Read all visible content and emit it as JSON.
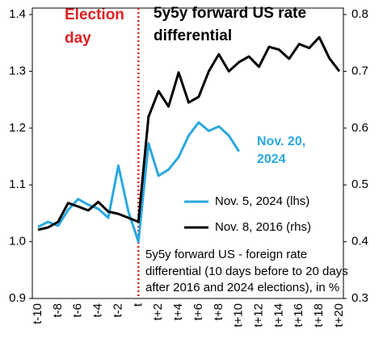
{
  "chart_data": {
    "type": "line",
    "annotations": {
      "event": [
        "Election",
        "day"
      ],
      "title": [
        "5y5y forward US rate",
        "differential"
      ],
      "latest": [
        "Nov. 20,",
        "2024"
      ],
      "note": [
        "5y5y forward US - foreign rate",
        "differential (10 days before to 20 days",
        "after 2016 and 2024 elections), in %"
      ]
    },
    "categories": [
      "t-10",
      null,
      "t-8",
      null,
      "t-6",
      null,
      "t-4",
      null,
      "t-2",
      null,
      "t",
      null,
      "t+2",
      null,
      "t+4",
      null,
      "t+6",
      null,
      "t+8",
      null,
      "t+10",
      null,
      "t+12",
      null,
      "t+14",
      null,
      "t+16",
      null,
      "t+18",
      null,
      "t+20"
    ],
    "series": [
      {
        "name": "Nov. 5, 2024 (lhs)",
        "color": "#2aa8e0",
        "axis": "y",
        "values": [
          1.026,
          1.035,
          1.028,
          1.056,
          1.075,
          1.065,
          1.058,
          1.042,
          1.134,
          1.053,
          1.0,
          1.173,
          1.116,
          1.127,
          1.149,
          1.187,
          1.21,
          1.195,
          1.203,
          1.187,
          1.159,
          null,
          null,
          null,
          null,
          null,
          null,
          null,
          null,
          null,
          null
        ]
      },
      {
        "name": "Nov. 8, 2016 (rhs)",
        "color": "#000000",
        "axis": "y2",
        "values": [
          0.421,
          0.425,
          0.435,
          0.468,
          0.462,
          0.455,
          0.47,
          0.453,
          0.449,
          0.442,
          0.435,
          0.62,
          0.665,
          0.638,
          0.698,
          0.645,
          0.655,
          0.7,
          0.73,
          0.7,
          0.716,
          0.726,
          0.708,
          0.743,
          0.738,
          0.722,
          0.748,
          0.741,
          0.76,
          0.723,
          0.7
        ]
      }
    ],
    "ylim": [
      0.9,
      1.4
    ],
    "yticks": [
      0.9,
      {
        "value": 1.0,
        "label": "1.0"
      },
      1.1,
      1.2,
      1.3,
      1.4
    ],
    "y2lim": [
      0.3,
      0.8
    ],
    "y2ticks": [
      0.3,
      0.4,
      0.5,
      0.6,
      0.7,
      0.8
    ],
    "grid": false
  }
}
